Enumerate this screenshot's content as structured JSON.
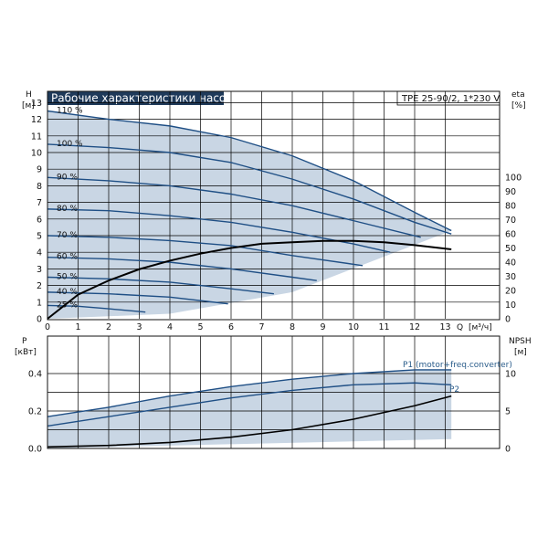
{
  "chart_data": [
    {
      "type": "line",
      "title": "Рабочие характеристики насоса",
      "model": "TPE 25-90/2, 1*230 V",
      "ylabel": "H",
      "yunit": "[м]",
      "y2label": "eta",
      "y2unit": "[%]",
      "xlabel": "Q",
      "xunit": "[м³/ч]",
      "xlim": [
        0,
        14
      ],
      "ylim": [
        0,
        14
      ],
      "y2lim": [
        0,
        100
      ],
      "xticks": [
        "0",
        "1",
        "2",
        "3",
        "4",
        "5",
        "6",
        "7",
        "8",
        "9",
        "10",
        "11",
        "12",
        "13"
      ],
      "yticks": [
        "0",
        "1",
        "2",
        "3",
        "4",
        "5",
        "6",
        "7",
        "8",
        "9",
        "10",
        "11",
        "12",
        "13"
      ],
      "y2ticks": [
        "0",
        "10",
        "20",
        "30",
        "40",
        "50",
        "60",
        "70",
        "80",
        "90",
        "100"
      ],
      "series": [
        {
          "name": "110 %",
          "x": [
            0,
            2,
            4,
            6,
            8,
            10,
            12,
            13.2
          ],
          "y": [
            12.5,
            12.0,
            11.6,
            10.9,
            9.8,
            8.3,
            6.4,
            5.3
          ]
        },
        {
          "name": "100 %",
          "x": [
            0,
            2,
            4,
            6,
            8,
            10,
            12,
            13.2
          ],
          "y": [
            10.5,
            10.3,
            10.0,
            9.4,
            8.4,
            7.2,
            5.8,
            5.1
          ]
        },
        {
          "name": "90 %",
          "x": [
            0,
            2,
            4,
            6,
            8,
            10,
            12.2
          ],
          "y": [
            8.5,
            8.3,
            8.0,
            7.5,
            6.8,
            5.9,
            4.9
          ]
        },
        {
          "name": "80 %",
          "x": [
            0,
            2,
            4,
            6,
            8,
            10,
            11.2
          ],
          "y": [
            6.6,
            6.5,
            6.2,
            5.8,
            5.2,
            4.5,
            4.0
          ]
        },
        {
          "name": "70 %",
          "x": [
            0,
            2,
            4,
            6,
            8,
            10.3
          ],
          "y": [
            5.0,
            4.9,
            4.7,
            4.4,
            3.8,
            3.2
          ]
        },
        {
          "name": "60 %",
          "x": [
            0,
            2,
            4,
            6,
            8,
            8.8
          ],
          "y": [
            3.7,
            3.6,
            3.4,
            3.0,
            2.5,
            2.3
          ]
        },
        {
          "name": "50 %",
          "x": [
            0,
            2,
            4,
            6,
            7.4
          ],
          "y": [
            2.5,
            2.4,
            2.2,
            1.8,
            1.5
          ]
        },
        {
          "name": "40 %",
          "x": [
            0,
            2,
            4,
            5.9
          ],
          "y": [
            1.6,
            1.5,
            1.3,
            0.9
          ]
        },
        {
          "name": "25 %",
          "x": [
            0,
            1,
            2,
            3.2
          ],
          "y": [
            0.8,
            0.75,
            0.6,
            0.4
          ]
        }
      ],
      "efficiency_series": [
        {
          "x": [
            0,
            1,
            2,
            3,
            4,
            5,
            6,
            7,
            8,
            9,
            10,
            11,
            12,
            13.2
          ],
          "y": [
            0,
            17,
            27,
            35,
            41,
            46,
            50,
            53,
            54,
            55,
            55,
            54,
            52,
            49
          ]
        }
      ]
    },
    {
      "type": "line",
      "ylabel": "P",
      "yunit": "[кВт]",
      "y2label": "NPSH",
      "y2unit": "[м]",
      "xlim": [
        0,
        14
      ],
      "ylim": [
        0,
        0.5
      ],
      "y2lim": [
        0,
        15
      ],
      "yticks": [
        "0.0",
        "0.2",
        "0.4"
      ],
      "y2ticks": [
        "0",
        "5",
        "10"
      ],
      "series": [
        {
          "name": "P1 (motor+freq.converter)",
          "x": [
            0,
            2,
            4,
            6,
            8,
            10,
            12,
            13.2
          ],
          "y": [
            0.17,
            0.22,
            0.28,
            0.33,
            0.37,
            0.4,
            0.42,
            0.42
          ]
        },
        {
          "name": "P2",
          "x": [
            0,
            2,
            4,
            6,
            8,
            10,
            12,
            13.2
          ],
          "y": [
            0.12,
            0.17,
            0.22,
            0.27,
            0.31,
            0.34,
            0.35,
            0.34
          ]
        }
      ],
      "npsh_series": [
        {
          "x": [
            0,
            2,
            4,
            6,
            8,
            10,
            12,
            13.2
          ],
          "y": [
            0.2,
            0.4,
            0.8,
            1.5,
            2.5,
            3.9,
            5.7,
            7.0
          ]
        }
      ]
    }
  ]
}
